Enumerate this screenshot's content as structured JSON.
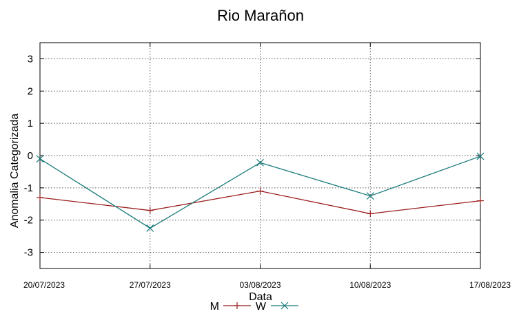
{
  "chart_data": {
    "type": "line",
    "title": "Rio Marañon",
    "xlabel": "Data",
    "ylabel": "Anomalia Categorizada",
    "x": [
      "20/07/2023",
      "27/07/2023",
      "03/08/2023",
      "10/08/2023",
      "17/08/2023"
    ],
    "ylim": [
      -3.5,
      3.5
    ],
    "yticks": [
      3,
      2,
      1,
      0,
      -1,
      -2,
      -3
    ],
    "ytick_labels": [
      "3",
      "2",
      "1",
      "0",
      "-1",
      "-2",
      "-3"
    ],
    "grid": true,
    "legend": "bottom-center",
    "series": [
      {
        "name": "M",
        "color": "#9b1c1c",
        "marker": "plus",
        "values": [
          -1.3,
          -1.7,
          -1.1,
          -1.8,
          -1.4
        ]
      },
      {
        "name": "W",
        "color": "#1a7a7a",
        "marker": "x",
        "values": [
          -0.1,
          -2.25,
          -0.22,
          -1.25,
          -0.02
        ]
      }
    ]
  }
}
